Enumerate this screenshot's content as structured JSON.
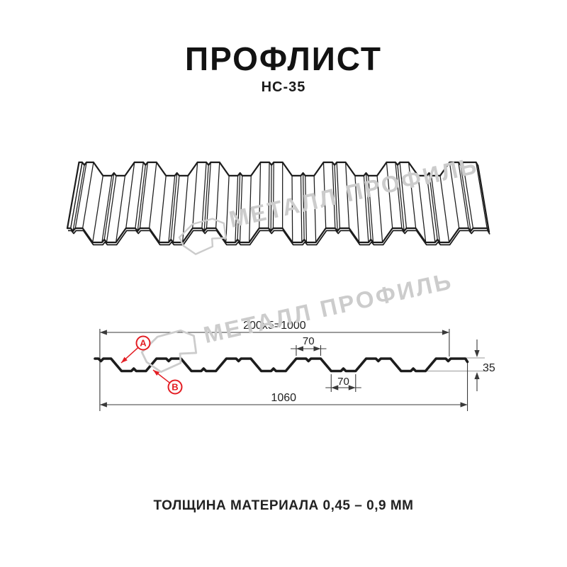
{
  "header": {
    "title": "ПРОФЛИСТ",
    "subtitle": "НС-35"
  },
  "footer": {
    "note": "ТОЛЩИНА МАТЕРИАЛА 0,45 – 0,9 ММ"
  },
  "watermark": {
    "text": "МЕТАЛЛ ПРОФИЛЬ"
  },
  "diagram": {
    "dimensions": {
      "pitch_total": "200x5=1000",
      "rib_top_width": "70",
      "rib_bottom_width": "70",
      "profile_height": "35",
      "overall_width": "1060"
    },
    "callouts": {
      "a": "A",
      "b": "B"
    }
  },
  "colors": {
    "accent_red": "#e31e24",
    "line": "#1c1c1c",
    "dim_line": "#3a3a3a",
    "ref_line": "#9a9a9a",
    "watermark": "#cccccc"
  }
}
